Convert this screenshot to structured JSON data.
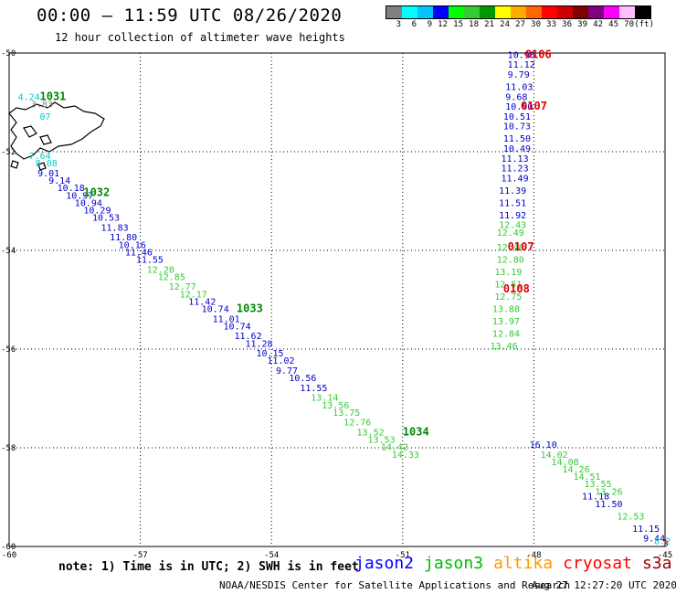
{
  "header": {
    "title": "00:00 – 11:59 UTC 08/26/2020",
    "subtitle": "12 hour collection of altimeter wave heights"
  },
  "legend": {
    "unit": "(ft)",
    "ticks": [
      "3",
      "6",
      "9",
      "12",
      "15",
      "18",
      "21",
      "24",
      "27",
      "30",
      "33",
      "36",
      "39",
      "42",
      "45",
      "70"
    ],
    "colors": [
      "#808080",
      "#00ffff",
      "#00c8ff",
      "#0000ff",
      "#00ff00",
      "#33cc33",
      "#009900",
      "#ffff00",
      "#ffaa00",
      "#ff6600",
      "#ff0000",
      "#cc0000",
      "#800000",
      "#800080",
      "#ff00ff",
      "#ffc0ff",
      "#000000"
    ]
  },
  "chart_data": {
    "type": "scatter",
    "lon_ticks": [
      "-60",
      "-57",
      "-54",
      "-51",
      "-48",
      "-45"
    ],
    "lat_ticks": [
      "-50",
      "-52",
      "-54",
      "-56",
      "-58",
      "-60"
    ],
    "lon_range": [
      -60,
      -45
    ],
    "lat_range": [
      -60,
      -50
    ],
    "series": [
      {
        "name": "jason2",
        "color": "#0000cc",
        "points": [
          {
            "lon": -48.6,
            "lat": -50.1,
            "v": "10.98"
          },
          {
            "lon": -48.6,
            "lat": -50.3,
            "v": "11.12"
          },
          {
            "lon": -48.6,
            "lat": -50.5,
            "v": "9.79"
          },
          {
            "lon": -48.65,
            "lat": -50.75,
            "v": "11.03"
          },
          {
            "lon": -48.65,
            "lat": -50.95,
            "v": "9.68"
          },
          {
            "lon": -48.65,
            "lat": -51.15,
            "v": "10.90"
          },
          {
            "lon": -48.7,
            "lat": -51.35,
            "v": "10.51"
          },
          {
            "lon": -48.7,
            "lat": -51.55,
            "v": "10.73"
          },
          {
            "lon": -48.7,
            "lat": -51.8,
            "v": "11.50"
          },
          {
            "lon": -48.7,
            "lat": -52.0,
            "v": "10.49"
          },
          {
            "lon": -48.75,
            "lat": -52.2,
            "v": "11.13"
          },
          {
            "lon": -48.75,
            "lat": -52.4,
            "v": "11.23"
          },
          {
            "lon": -48.75,
            "lat": -52.6,
            "v": "11.49"
          },
          {
            "lon": -48.8,
            "lat": -52.85,
            "v": "11.39"
          },
          {
            "lon": -48.8,
            "lat": -53.1,
            "v": "11.51"
          },
          {
            "lon": -48.8,
            "lat": -53.35,
            "v": "11.92"
          },
          {
            "lon": -59.35,
            "lat": -52.5,
            "v": "9.01"
          },
          {
            "lon": -59.1,
            "lat": -52.65,
            "v": "9.14"
          },
          {
            "lon": -58.9,
            "lat": -52.8,
            "v": "10.18"
          },
          {
            "lon": -58.7,
            "lat": -52.95,
            "v": "10.97"
          },
          {
            "lon": -58.5,
            "lat": -53.1,
            "v": "10.94"
          },
          {
            "lon": -58.3,
            "lat": -53.25,
            "v": "10.29"
          },
          {
            "lon": -58.1,
            "lat": -53.4,
            "v": "10.53"
          },
          {
            "lon": -57.9,
            "lat": -53.6,
            "v": "11.83"
          },
          {
            "lon": -57.7,
            "lat": -53.8,
            "v": "11.80"
          },
          {
            "lon": -57.5,
            "lat": -53.95,
            "v": "10.16"
          },
          {
            "lon": -57.35,
            "lat": -54.1,
            "v": "11.46"
          },
          {
            "lon": -57.1,
            "lat": -54.25,
            "v": "11.55"
          },
          {
            "lon": -55.9,
            "lat": -55.1,
            "v": "11.42"
          },
          {
            "lon": -55.6,
            "lat": -55.25,
            "v": "10.74"
          },
          {
            "lon": -55.35,
            "lat": -55.45,
            "v": "11.01"
          },
          {
            "lon": -55.1,
            "lat": -55.6,
            "v": "10.74"
          },
          {
            "lon": -54.85,
            "lat": -55.8,
            "v": "11.62"
          },
          {
            "lon": -54.6,
            "lat": -55.95,
            "v": "11.28"
          },
          {
            "lon": -54.35,
            "lat": -56.15,
            "v": "10.15"
          },
          {
            "lon": -54.1,
            "lat": -56.3,
            "v": "11.02"
          },
          {
            "lon": -53.9,
            "lat": -56.5,
            "v": "9.77"
          },
          {
            "lon": -53.6,
            "lat": -56.65,
            "v": "10.56"
          },
          {
            "lon": -53.35,
            "lat": -56.85,
            "v": "11.55"
          },
          {
            "lon": -48.1,
            "lat": -58.0,
            "v": "16.10"
          },
          {
            "lon": -46.9,
            "lat": -59.05,
            "v": "11.18"
          },
          {
            "lon": -46.6,
            "lat": -59.2,
            "v": "11.50"
          },
          {
            "lon": -45.75,
            "lat": -59.7,
            "v": "11.15"
          },
          {
            "lon": -45.5,
            "lat": -59.9,
            "v": "9.44"
          }
        ]
      },
      {
        "name": "jason3",
        "color": "#33cc33",
        "points": [
          {
            "lon": -48.8,
            "lat": -53.55,
            "v": "12.43"
          },
          {
            "lon": -48.85,
            "lat": -53.7,
            "v": "12.49"
          },
          {
            "lon": -48.85,
            "lat": -54.0,
            "v": "12.46"
          },
          {
            "lon": -48.85,
            "lat": -54.25,
            "v": "12.80"
          },
          {
            "lon": -48.9,
            "lat": -54.5,
            "v": "13.19"
          },
          {
            "lon": -48.9,
            "lat": -54.75,
            "v": "12.51"
          },
          {
            "lon": -48.9,
            "lat": -55.0,
            "v": "12.75"
          },
          {
            "lon": -48.95,
            "lat": -55.25,
            "v": "13.88"
          },
          {
            "lon": -48.95,
            "lat": -55.5,
            "v": "13.97"
          },
          {
            "lon": -48.95,
            "lat": -55.75,
            "v": "12.84"
          },
          {
            "lon": -49.0,
            "lat": -56.0,
            "v": "13.46"
          },
          {
            "lon": -56.85,
            "lat": -54.45,
            "v": "12.20"
          },
          {
            "lon": -56.6,
            "lat": -54.6,
            "v": "12.85"
          },
          {
            "lon": -56.35,
            "lat": -54.8,
            "v": "12.77"
          },
          {
            "lon": -56.1,
            "lat": -54.95,
            "v": "12.17"
          },
          {
            "lon": -53.1,
            "lat": -57.05,
            "v": "13.14"
          },
          {
            "lon": -52.85,
            "lat": -57.2,
            "v": "13.56"
          },
          {
            "lon": -52.6,
            "lat": -57.35,
            "v": "13.75"
          },
          {
            "lon": -52.35,
            "lat": -57.55,
            "v": "12.76"
          },
          {
            "lon": -52.05,
            "lat": -57.75,
            "v": "13.52"
          },
          {
            "lon": -51.8,
            "lat": -57.9,
            "v": "13.53"
          },
          {
            "lon": -51.5,
            "lat": -58.05,
            "v": "14.42"
          },
          {
            "lon": -51.25,
            "lat": -58.2,
            "v": "14.33"
          },
          {
            "lon": -47.85,
            "lat": -58.2,
            "v": "14.02"
          },
          {
            "lon": -47.6,
            "lat": -58.35,
            "v": "14.08"
          },
          {
            "lon": -47.35,
            "lat": -58.5,
            "v": "14.26"
          },
          {
            "lon": -47.1,
            "lat": -58.65,
            "v": "14.51"
          },
          {
            "lon": -46.85,
            "lat": -58.8,
            "v": "13.55"
          },
          {
            "lon": -46.6,
            "lat": -58.95,
            "v": "13.26"
          },
          {
            "lon": -46.1,
            "lat": -59.45,
            "v": "12.53"
          }
        ]
      },
      {
        "name": "cyan",
        "color": "#00cccc",
        "points": [
          {
            "lon": -59.8,
            "lat": -50.95,
            "v": "4.24"
          },
          {
            "lon": -59.3,
            "lat": -51.35,
            "v": "07"
          },
          {
            "lon": -59.55,
            "lat": -52.15,
            "v": "7.64"
          },
          {
            "lon": -59.4,
            "lat": -52.3,
            "v": "8.08"
          },
          {
            "lon": -45.25,
            "lat": -59.95,
            "v": "8.2"
          }
        ]
      },
      {
        "name": "gray",
        "color": "#888888",
        "points": [
          {
            "lon": -59.5,
            "lat": -51.1,
            "v": "3.83"
          }
        ]
      },
      {
        "name": "red",
        "color": "#aa0000",
        "points": [
          {
            "lon": -45.05,
            "lat": -60.0,
            "v": "3"
          }
        ]
      }
    ],
    "track_labels": [
      {
        "lon": -59.3,
        "lat": -50.95,
        "v": "1031",
        "color": "#008800"
      },
      {
        "lon": -58.3,
        "lat": -52.9,
        "v": "1032",
        "color": "#008800"
      },
      {
        "lon": -54.8,
        "lat": -55.25,
        "v": "1033",
        "color": "#008800"
      },
      {
        "lon": -51.0,
        "lat": -57.75,
        "v": "1034",
        "color": "#008800"
      },
      {
        "lon": -48.2,
        "lat": -50.1,
        "v": "0106",
        "color": "#dd0000"
      },
      {
        "lon": -48.3,
        "lat": -51.15,
        "v": "0107",
        "color": "#dd0000"
      },
      {
        "lon": -48.6,
        "lat": -54.0,
        "v": "0107",
        "color": "#dd0000"
      },
      {
        "lon": -48.7,
        "lat": -54.85,
        "v": "0108",
        "color": "#dd0000"
      }
    ]
  },
  "footer": {
    "note": "note:  1) Time is in UTC;  2) SWH is in feet",
    "satellites": [
      {
        "name": "jason2",
        "color": "#0000ff"
      },
      {
        "name": "jason3",
        "color": "#00bb00"
      },
      {
        "name": "altika",
        "color": "#ff9900"
      },
      {
        "name": "cryosat",
        "color": "#ff0000"
      },
      {
        "name": "s3a",
        "color": "#990000"
      }
    ],
    "credit": "NOAA/NESDIS Center for Satellite Applications and Research",
    "timestamp": "Aug 27 12:27:20 UTC 2020"
  }
}
